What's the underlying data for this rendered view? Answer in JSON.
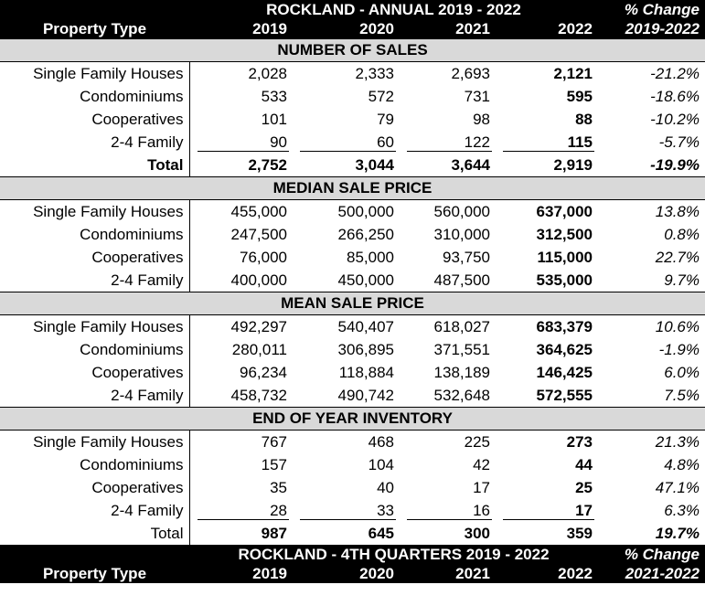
{
  "header_annual": {
    "title": "ROCKLAND -  ANNUAL 2019 - 2022",
    "pct_top": "% Change",
    "property_type": "Property Type",
    "years": [
      "2019",
      "2020",
      "2021",
      "2022"
    ],
    "pct_range": "2019-2022"
  },
  "sections": [
    {
      "title": "NUMBER OF SALES",
      "rows": [
        {
          "label": "Single Family Houses",
          "v": [
            "2,028",
            "2,333",
            "2,693",
            "2,121"
          ],
          "pct": "-21.2%"
        },
        {
          "label": "Condominiums",
          "v": [
            "533",
            "572",
            "731",
            "595"
          ],
          "pct": "-18.6%"
        },
        {
          "label": "Cooperatives",
          "v": [
            "101",
            "79",
            "98",
            "88"
          ],
          "pct": "-10.2%"
        },
        {
          "label": "2-4 Family",
          "v": [
            "90",
            "60",
            "122",
            "115"
          ],
          "pct": "-5.7%"
        }
      ],
      "total": {
        "label": "Total",
        "v": [
          "2,752",
          "3,044",
          "3,644",
          "2,919"
        ],
        "pct": "-19.9%"
      }
    },
    {
      "title": "MEDIAN SALE PRICE",
      "rows": [
        {
          "label": "Single Family Houses",
          "v": [
            "455,000",
            "500,000",
            "560,000",
            "637,000"
          ],
          "pct": "13.8%"
        },
        {
          "label": "Condominiums",
          "v": [
            "247,500",
            "266,250",
            "310,000",
            "312,500"
          ],
          "pct": "0.8%"
        },
        {
          "label": "Cooperatives",
          "v": [
            "76,000",
            "85,000",
            "93,750",
            "115,000"
          ],
          "pct": "22.7%"
        },
        {
          "label": "2-4 Family",
          "v": [
            "400,000",
            "450,000",
            "487,500",
            "535,000"
          ],
          "pct": "9.7%"
        }
      ]
    },
    {
      "title": "MEAN SALE PRICE",
      "rows": [
        {
          "label": "Single Family Houses",
          "v": [
            "492,297",
            "540,407",
            "618,027",
            "683,379"
          ],
          "pct": "10.6%"
        },
        {
          "label": "Condominiums",
          "v": [
            "280,011",
            "306,895",
            "371,551",
            "364,625"
          ],
          "pct": "-1.9%"
        },
        {
          "label": "Cooperatives",
          "v": [
            "96,234",
            "118,884",
            "138,189",
            "146,425"
          ],
          "pct": "6.0%"
        },
        {
          "label": "2-4 Family",
          "v": [
            "458,732",
            "490,742",
            "532,648",
            "572,555"
          ],
          "pct": "7.5%"
        }
      ]
    },
    {
      "title": "END OF YEAR INVENTORY",
      "rows": [
        {
          "label": "Single Family Houses",
          "v": [
            "767",
            "468",
            "225",
            "273"
          ],
          "pct": "21.3%"
        },
        {
          "label": "Condominiums",
          "v": [
            "157",
            "104",
            "42",
            "44"
          ],
          "pct": "4.8%"
        },
        {
          "label": "Cooperatives",
          "v": [
            "35",
            "40",
            "17",
            "25"
          ],
          "pct": "47.1%"
        },
        {
          "label": "2-4 Family",
          "v": [
            "28",
            "33",
            "16",
            "17"
          ],
          "pct": "6.3%"
        }
      ],
      "total": {
        "label": "Total",
        "v": [
          "987",
          "645",
          "300",
          "359"
        ],
        "pct": "19.7%"
      }
    }
  ],
  "header_quarterly": {
    "title": "ROCKLAND -  4TH  QUARTERS  2019 - 2022",
    "pct_top": "% Change",
    "property_type": "Property Type",
    "years": [
      "2019",
      "2020",
      "2021",
      "2022"
    ],
    "pct_range": "2021-2022"
  }
}
